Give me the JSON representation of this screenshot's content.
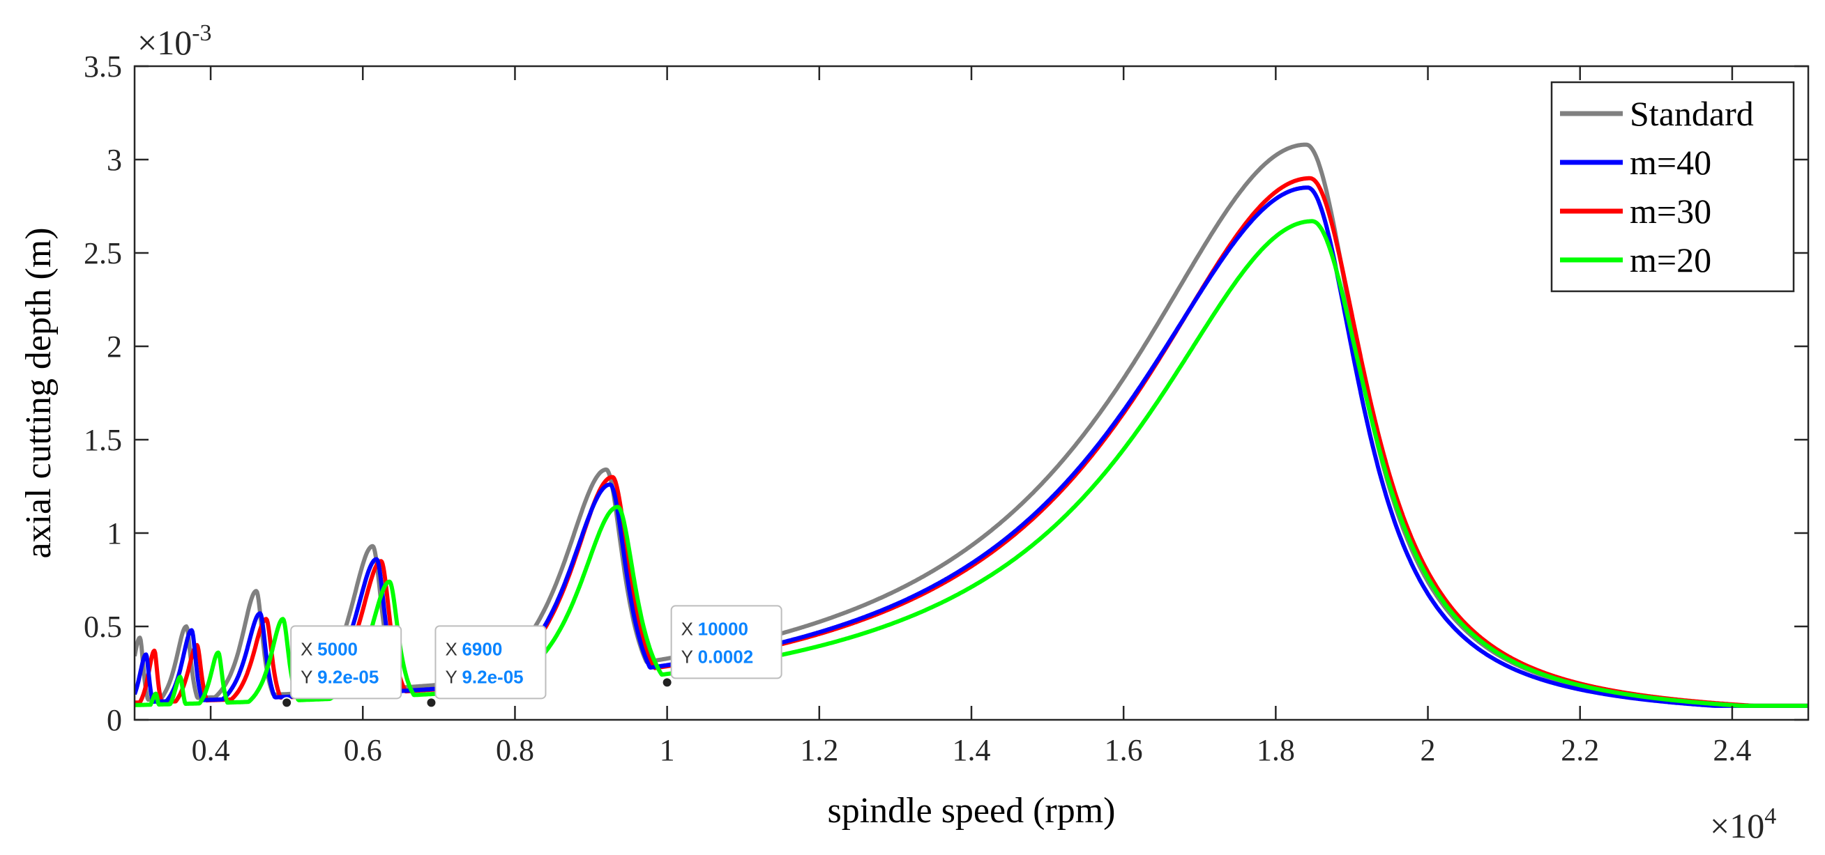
{
  "chart_data": {
    "type": "line",
    "xlabel": "spindle speed (rpm)",
    "ylabel": "axial cutting depth (m)",
    "x_multiplier": {
      "base": "×10",
      "exp": "4"
    },
    "y_multiplier": {
      "base": "×10",
      "exp": "-3"
    },
    "xlim": [
      3000,
      25000
    ],
    "ylim": [
      0,
      0.0035
    ],
    "x_scale": 10000,
    "y_scale": 0.001,
    "x_ticks": [
      4000,
      6000,
      8000,
      10000,
      12000,
      14000,
      16000,
      18000,
      20000,
      22000,
      24000
    ],
    "x_tick_labels": [
      "0.4",
      "0.6",
      "0.8",
      "1",
      "1.2",
      "1.4",
      "1.6",
      "1.8",
      "2",
      "2.2",
      "2.4"
    ],
    "y_ticks": [
      0,
      0.0005,
      0.001,
      0.0015,
      0.002,
      0.0025,
      0.003,
      0.0035
    ],
    "y_tick_labels": [
      "0",
      "0.5",
      "1",
      "1.5",
      "2",
      "2.5",
      "3",
      "3.5"
    ],
    "grid": false,
    "legend_position": "top-right",
    "series": [
      {
        "name": "Standard",
        "color": "#808080",
        "baseline": 7.5e-05,
        "lobes": [
          {
            "peak_x": 18400,
            "peak_y": 0.00308,
            "left_width": 2900,
            "right_width": 900
          },
          {
            "peak_x": 9200,
            "peak_y": 0.00134,
            "left_width": 720,
            "right_width": 290
          },
          {
            "peak_x": 6130,
            "peak_y": 0.00093,
            "left_width": 380,
            "right_width": 160
          },
          {
            "peak_x": 4600,
            "peak_y": 0.00069,
            "left_width": 250,
            "right_width": 110
          },
          {
            "peak_x": 3680,
            "peak_y": 0.0005,
            "left_width": 180,
            "right_width": 80
          },
          {
            "peak_x": 3070,
            "peak_y": 0.00044,
            "left_width": 130,
            "right_width": 60
          }
        ]
      },
      {
        "name": "m=40",
        "color": "#0000ff",
        "baseline": 7.5e-05,
        "lobes": [
          {
            "peak_x": 18420,
            "peak_y": 0.00285,
            "left_width": 2850,
            "right_width": 880
          },
          {
            "peak_x": 9250,
            "peak_y": 0.00126,
            "left_width": 700,
            "right_width": 280
          },
          {
            "peak_x": 6180,
            "peak_y": 0.00086,
            "left_width": 370,
            "right_width": 150
          },
          {
            "peak_x": 4650,
            "peak_y": 0.00057,
            "left_width": 240,
            "right_width": 100
          },
          {
            "peak_x": 3750,
            "peak_y": 0.00048,
            "left_width": 170,
            "right_width": 75
          },
          {
            "peak_x": 3150,
            "peak_y": 0.00035,
            "left_width": 120,
            "right_width": 55
          }
        ]
      },
      {
        "name": "m=30",
        "color": "#ff0000",
        "baseline": 7.5e-05,
        "lobes": [
          {
            "peak_x": 18450,
            "peak_y": 0.0029,
            "left_width": 2800,
            "right_width": 950
          },
          {
            "peak_x": 9280,
            "peak_y": 0.0013,
            "left_width": 690,
            "right_width": 290
          },
          {
            "peak_x": 6240,
            "peak_y": 0.00085,
            "left_width": 360,
            "right_width": 150
          },
          {
            "peak_x": 4730,
            "peak_y": 0.00054,
            "left_width": 230,
            "right_width": 100
          },
          {
            "peak_x": 3820,
            "peak_y": 0.0004,
            "left_width": 160,
            "right_width": 75
          },
          {
            "peak_x": 3260,
            "peak_y": 0.00037,
            "left_width": 110,
            "right_width": 55
          }
        ]
      },
      {
        "name": "m=20",
        "color": "#00ff00",
        "baseline": 7.5e-05,
        "lobes": [
          {
            "peak_x": 18480,
            "peak_y": 0.00267,
            "left_width": 2700,
            "right_width": 960
          },
          {
            "peak_x": 9350,
            "peak_y": 0.00114,
            "left_width": 650,
            "right_width": 300
          },
          {
            "peak_x": 6350,
            "peak_y": 0.00074,
            "left_width": 330,
            "right_width": 150
          },
          {
            "peak_x": 4950,
            "peak_y": 0.00054,
            "left_width": 210,
            "right_width": 100
          },
          {
            "peak_x": 4100,
            "peak_y": 0.00036,
            "left_width": 140,
            "right_width": 70
          },
          {
            "peak_x": 3600,
            "peak_y": 0.00023,
            "left_width": 100,
            "right_width": 50
          },
          {
            "peak_x": 3280,
            "peak_y": 0.00014,
            "left_width": 80,
            "right_width": 40
          }
        ]
      }
    ],
    "datatips": [
      {
        "x": 5000,
        "y": 9.2e-05,
        "x_text": "5000",
        "y_text": "9.2e-05"
      },
      {
        "x": 6900,
        "y": 9.2e-05,
        "x_text": "6900",
        "y_text": "9.2e-05"
      },
      {
        "x": 10000,
        "y": 0.0002,
        "x_text": "10000",
        "y_text": "0.0002"
      }
    ],
    "datatip_labels": {
      "x_key": "X",
      "y_key": "Y"
    }
  }
}
